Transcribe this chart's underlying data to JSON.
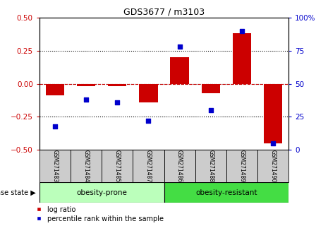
{
  "title": "GDS3677 / m3103",
  "samples": [
    "GSM271483",
    "GSM271484",
    "GSM271485",
    "GSM271487",
    "GSM271486",
    "GSM271488",
    "GSM271489",
    "GSM271490"
  ],
  "log_ratio": [
    -0.09,
    -0.02,
    -0.02,
    -0.14,
    0.2,
    -0.07,
    0.38,
    -0.45
  ],
  "percentile_rank": [
    18,
    38,
    36,
    22,
    78,
    30,
    90,
    5
  ],
  "group1_label": "obesity-prone",
  "group2_label": "obesity-resistant",
  "group1_indices": [
    0,
    1,
    2,
    3
  ],
  "group2_indices": [
    4,
    5,
    6,
    7
  ],
  "group1_color": "#bbffbb",
  "group2_color": "#44dd44",
  "bar_color": "#cc0000",
  "dot_color": "#0000cc",
  "ylim_left": [
    -0.5,
    0.5
  ],
  "ylim_right": [
    0,
    100
  ],
  "yticks_left": [
    -0.5,
    -0.25,
    0,
    0.25,
    0.5
  ],
  "yticks_right": [
    0,
    25,
    50,
    75,
    100
  ],
  "left_tick_color": "#cc0000",
  "right_tick_color": "#0000cc",
  "disease_state_label": "disease state",
  "legend_log_ratio": "log ratio",
  "legend_percentile": "percentile rank within the sample",
  "header_bg_color": "#cccccc"
}
